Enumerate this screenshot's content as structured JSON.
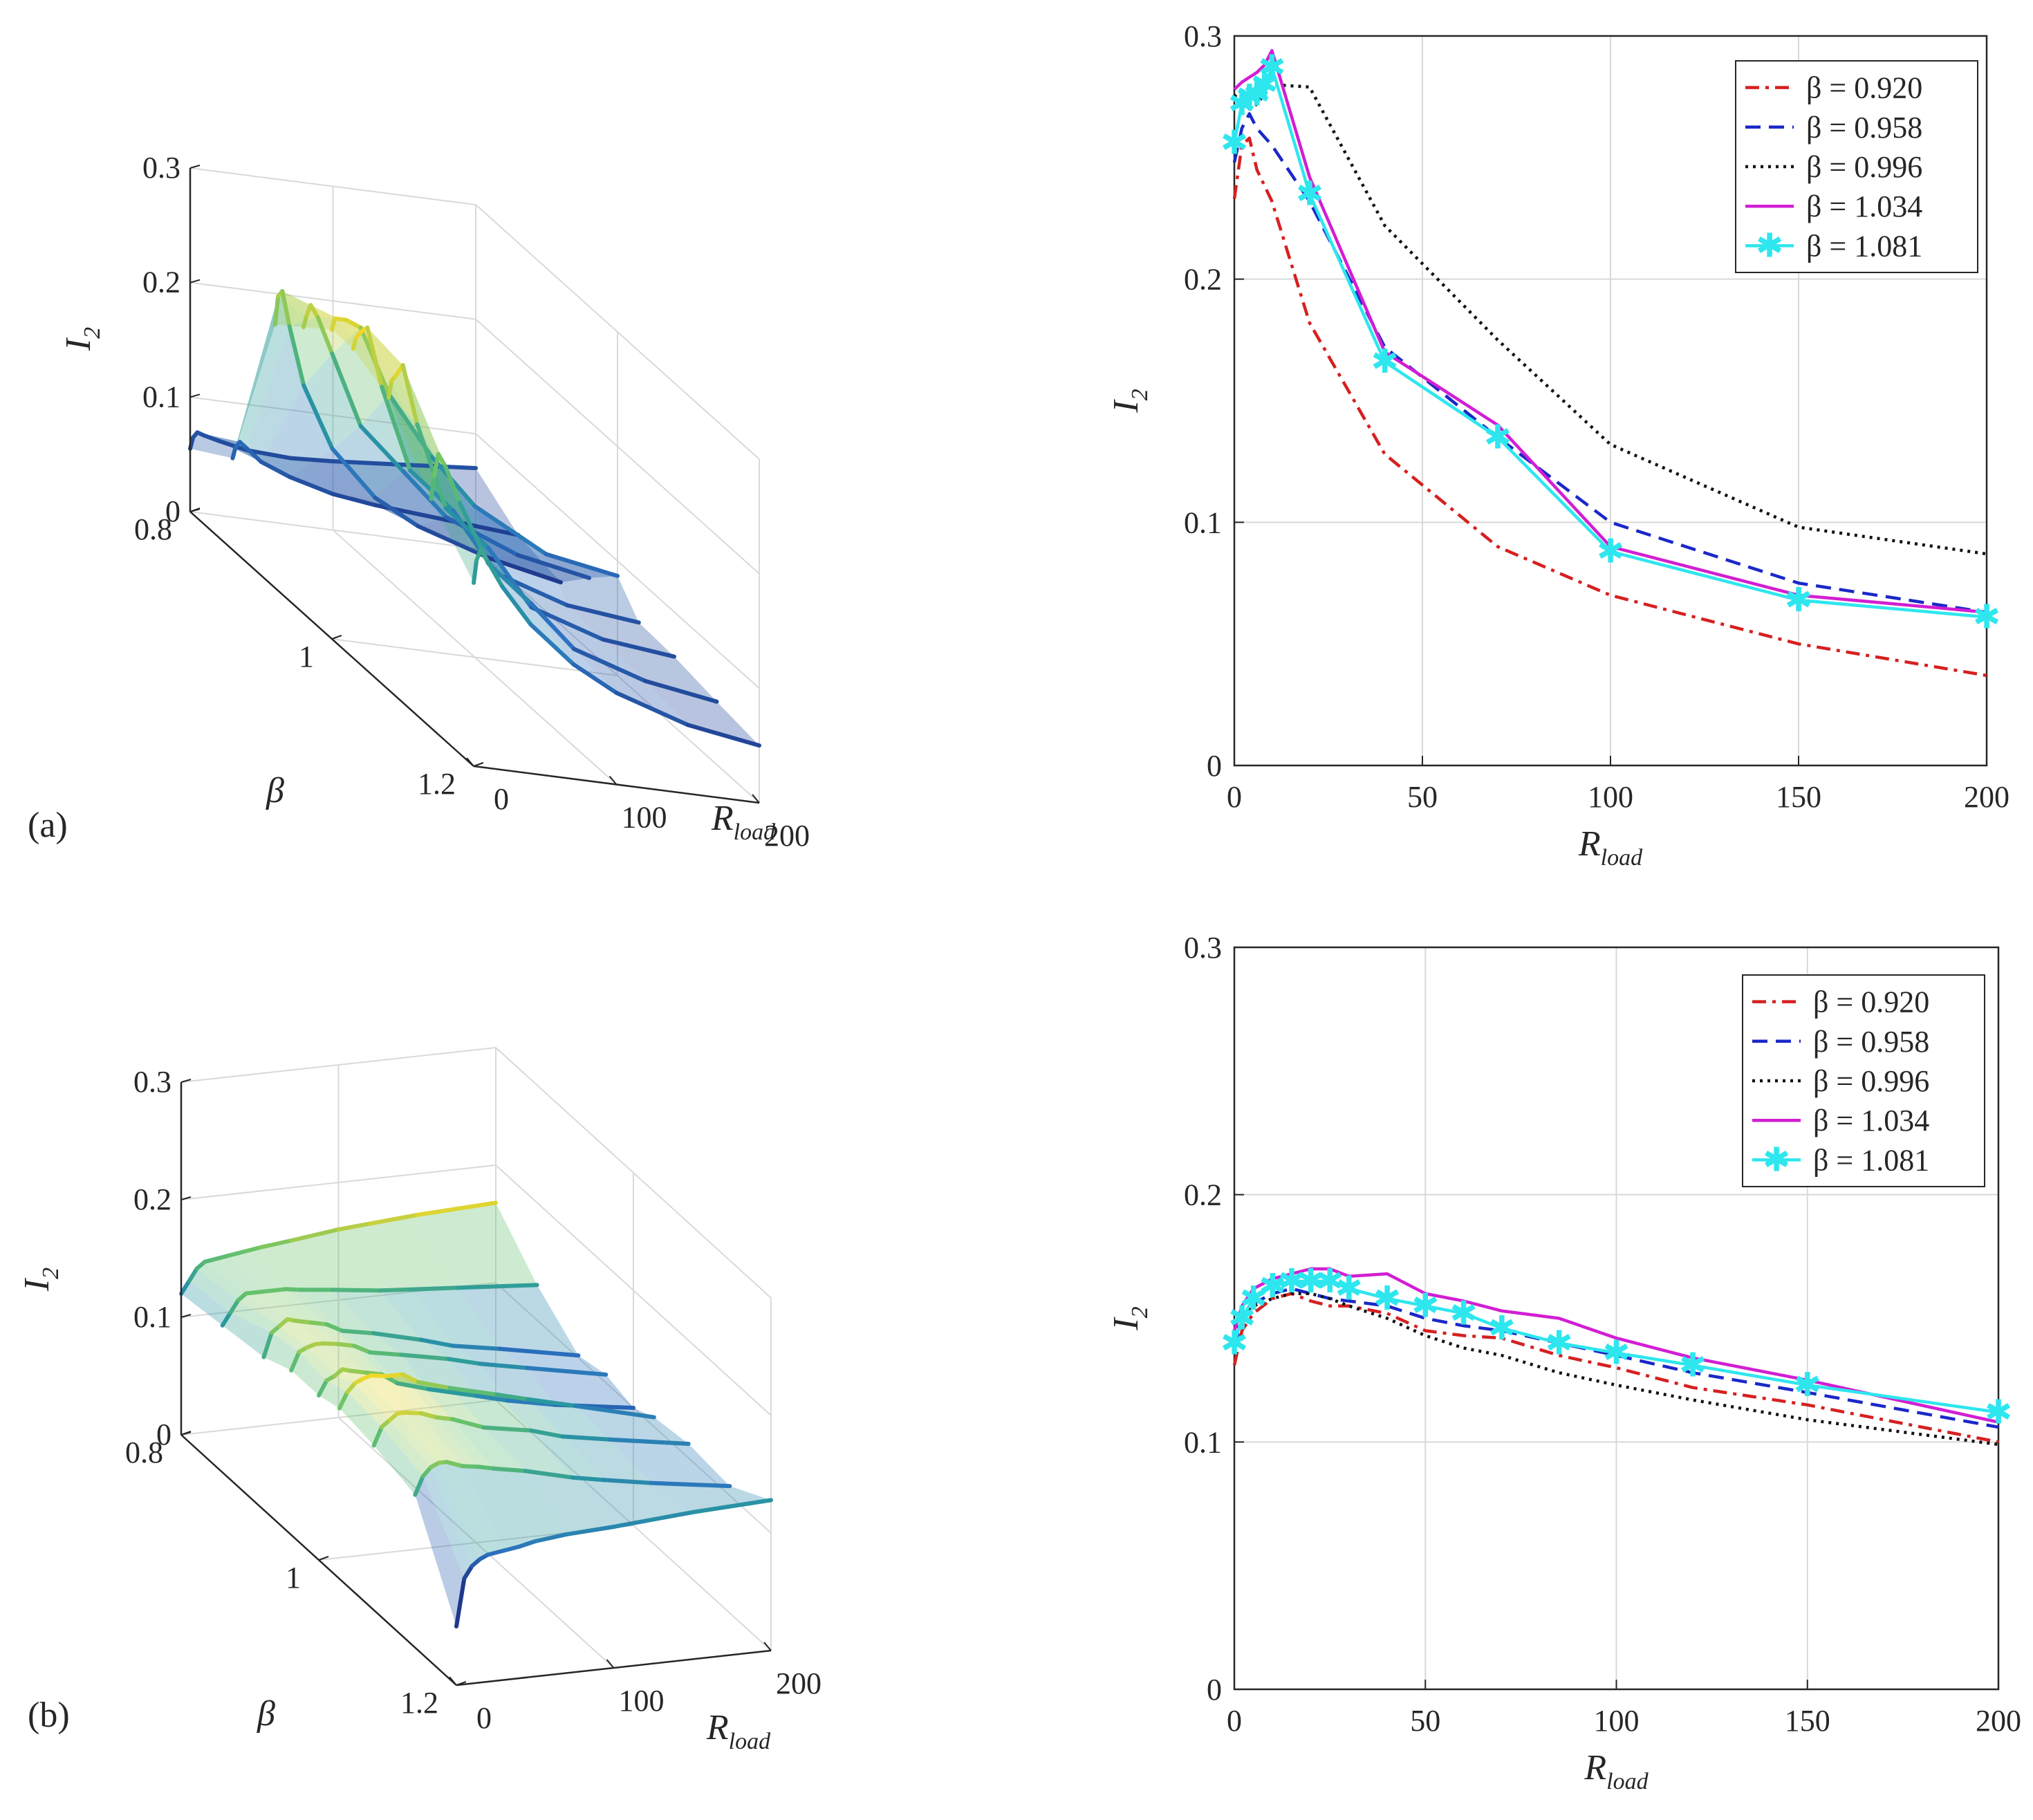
{
  "figure": {
    "panel_labels": [
      "(a)",
      "(b)"
    ]
  },
  "chart_data": [
    {
      "id": "a-3d",
      "type": "surface",
      "panel": "(a)",
      "xlabel": "R",
      "xlabel_sub": "load",
      "ylabel": "β",
      "zlabel": "I",
      "zlabel_sub": "2",
      "xlim": [
        0,
        200
      ],
      "ylim": [
        0.8,
        1.2
      ],
      "zlim": [
        0,
        0.3
      ],
      "xticks": [
        "0",
        "100",
        "200"
      ],
      "yticks": [
        "0.8",
        "1",
        "1.2"
      ],
      "zticks": [
        "0",
        "0.1",
        "0.2",
        "0.3"
      ],
      "x": [
        0,
        2,
        5,
        10,
        20,
        40,
        70,
        100,
        150,
        200
      ],
      "series": [
        {
          "beta": 0.8,
          "values": [
            0.055,
            0.065,
            0.07,
            0.068,
            0.065,
            0.06,
            0.058,
            0.06,
            0.065,
            0.07
          ]
        },
        {
          "beta": 0.86,
          "values": [
            0.08,
            0.09,
            0.095,
            0.09,
            0.08,
            0.07,
            0.06,
            0.055,
            0.05,
            0.045
          ]
        },
        {
          "beta": 0.92,
          "values": [
            0.23,
            0.255,
            0.26,
            0.23,
            0.18,
            0.128,
            0.09,
            0.07,
            0.05,
            0.037
          ]
        },
        {
          "beta": 0.96,
          "values": [
            0.25,
            0.26,
            0.27,
            0.26,
            0.23,
            0.17,
            0.135,
            0.1,
            0.075,
            0.063
          ]
        },
        {
          "beta": 1.0,
          "values": [
            0.27,
            0.28,
            0.28,
            0.28,
            0.275,
            0.22,
            0.17,
            0.132,
            0.098,
            0.087
          ]
        },
        {
          "beta": 1.03,
          "values": [
            0.27,
            0.28,
            0.285,
            0.29,
            0.24,
            0.17,
            0.14,
            0.09,
            0.07,
            0.063
          ]
        },
        {
          "beta": 1.08,
          "values": [
            0.255,
            0.27,
            0.275,
            0.285,
            0.235,
            0.165,
            0.135,
            0.088,
            0.068,
            0.061
          ]
        },
        {
          "beta": 1.14,
          "values": [
            0.2,
            0.22,
            0.24,
            0.23,
            0.2,
            0.15,
            0.12,
            0.085,
            0.065,
            0.055
          ]
        },
        {
          "beta": 1.2,
          "values": [
            0.16,
            0.18,
            0.19,
            0.18,
            0.16,
            0.13,
            0.1,
            0.08,
            0.06,
            0.05
          ]
        }
      ]
    },
    {
      "id": "a-2d",
      "type": "line",
      "panel": "(a)",
      "xlabel": "R",
      "xlabel_sub": "load",
      "ylabel": "I",
      "ylabel_sub": "2",
      "xlim": [
        0,
        200
      ],
      "ylim": [
        0,
        0.3
      ],
      "xticks": [
        0,
        50,
        100,
        150,
        200
      ],
      "yticks": [
        0,
        0.1,
        0.2,
        0.3
      ],
      "xtick_labels": [
        "0",
        "50",
        "100",
        "150",
        "200"
      ],
      "ytick_labels": [
        "0",
        "0.1",
        "0.2",
        "0.3"
      ],
      "grid": true,
      "legend": "top-right",
      "series": [
        {
          "name": "β = 0.920",
          "color": "#d62020",
          "dash": "dashdot",
          "marker": "none",
          "x": [
            0,
            2,
            4,
            6,
            10,
            20,
            40,
            70,
            100,
            150,
            200
          ],
          "y": [
            0.233,
            0.255,
            0.258,
            0.245,
            0.232,
            0.182,
            0.128,
            0.09,
            0.07,
            0.05,
            0.037
          ]
        },
        {
          "name": "β = 0.958",
          "color": "#1a28c8",
          "dash": "dashed",
          "marker": "none",
          "x": [
            0,
            2,
            4,
            6,
            10,
            20,
            40,
            70,
            100,
            150,
            200
          ],
          "y": [
            0.248,
            0.262,
            0.268,
            0.262,
            0.255,
            0.232,
            0.172,
            0.135,
            0.1,
            0.075,
            0.063
          ]
        },
        {
          "name": "β = 0.996",
          "color": "#111111",
          "dash": "dotted",
          "marker": "none",
          "x": [
            0,
            2,
            4,
            6,
            8,
            10,
            20,
            40,
            70,
            100,
            150,
            200
          ],
          "y": [
            0.275,
            0.278,
            0.27,
            0.272,
            0.276,
            0.28,
            0.279,
            0.222,
            0.175,
            0.132,
            0.098,
            0.087
          ]
        },
        {
          "name": "β = 1.034",
          "color": "#d21ed2",
          "dash": "solid",
          "marker": "none",
          "x": [
            0,
            2,
            4,
            6,
            8,
            10,
            20,
            40,
            70,
            100,
            150,
            200
          ],
          "y": [
            0.278,
            0.281,
            0.283,
            0.285,
            0.288,
            0.294,
            0.242,
            0.17,
            0.14,
            0.09,
            0.07,
            0.063
          ]
        },
        {
          "name": "β = 1.081",
          "color": "#2ee6ee",
          "dash": "solid",
          "marker": "star",
          "x": [
            0,
            2,
            4,
            6,
            8,
            10,
            20,
            40,
            70,
            100,
            150,
            200
          ],
          "y": [
            0.256,
            0.272,
            0.275,
            0.276,
            0.28,
            0.287,
            0.235,
            0.166,
            0.135,
            0.088,
            0.068,
            0.061
          ]
        }
      ]
    },
    {
      "id": "b-3d",
      "type": "surface",
      "panel": "(b)",
      "xlabel": "R",
      "xlabel_sub": "load",
      "ylabel": "β",
      "zlabel": "I",
      "zlabel_sub": "2",
      "xlim": [
        0,
        200
      ],
      "ylim": [
        0.8,
        1.2
      ],
      "zlim": [
        0,
        0.3
      ],
      "xticks": [
        "0",
        "100",
        "200"
      ],
      "yticks": [
        "0.8",
        "1",
        "1.2"
      ],
      "zticks": [
        "0",
        "0.1",
        "0.2",
        "0.3"
      ],
      "x": [
        0,
        5,
        10,
        15,
        20,
        30,
        40,
        50,
        70,
        100,
        120,
        150,
        200
      ],
      "series": [
        {
          "beta": 0.8,
          "values": [
            0.12,
            0.13,
            0.14,
            0.145,
            0.146,
            0.148,
            0.15,
            0.152,
            0.155,
            0.16,
            0.162,
            0.165,
            0.168
          ]
        },
        {
          "beta": 0.86,
          "values": [
            0.125,
            0.135,
            0.145,
            0.15,
            0.15,
            0.15,
            0.15,
            0.148,
            0.145,
            0.14,
            0.138,
            0.135,
            0.13
          ]
        },
        {
          "beta": 0.92,
          "values": [
            0.13,
            0.15,
            0.155,
            0.16,
            0.158,
            0.155,
            0.152,
            0.145,
            0.14,
            0.13,
            0.122,
            0.115,
            0.102
          ]
        },
        {
          "beta": 0.96,
          "values": [
            0.14,
            0.155,
            0.158,
            0.16,
            0.16,
            0.158,
            0.155,
            0.148,
            0.143,
            0.135,
            0.128,
            0.12,
            0.107
          ]
        },
        {
          "beta": 1.0,
          "values": [
            0.14,
            0.152,
            0.155,
            0.16,
            0.158,
            0.155,
            0.152,
            0.143,
            0.135,
            0.125,
            0.118,
            0.11,
            0.1
          ]
        },
        {
          "beta": 1.03,
          "values": [
            0.145,
            0.158,
            0.165,
            0.168,
            0.17,
            0.168,
            0.168,
            0.16,
            0.152,
            0.142,
            0.135,
            0.125,
            0.108
          ]
        },
        {
          "beta": 1.08,
          "values": [
            0.14,
            0.155,
            0.16,
            0.165,
            0.165,
            0.163,
            0.158,
            0.155,
            0.145,
            0.138,
            0.13,
            0.123,
            0.112
          ]
        },
        {
          "beta": 1.14,
          "values": [
            0.13,
            0.145,
            0.152,
            0.155,
            0.155,
            0.15,
            0.148,
            0.145,
            0.14,
            0.13,
            0.125,
            0.118,
            0.108
          ]
        },
        {
          "beta": 1.2,
          "values": [
            0.05,
            0.09,
            0.1,
            0.105,
            0.108,
            0.11,
            0.112,
            0.115,
            0.118,
            0.12,
            0.122,
            0.125,
            0.128
          ]
        }
      ]
    },
    {
      "id": "b-2d",
      "type": "line",
      "panel": "(b)",
      "xlabel": "R",
      "xlabel_sub": "load",
      "ylabel": "I",
      "ylabel_sub": "2",
      "xlim": [
        0,
        200
      ],
      "ylim": [
        0,
        0.3
      ],
      "xticks": [
        0,
        50,
        100,
        150,
        200
      ],
      "yticks": [
        0,
        0.1,
        0.2,
        0.3
      ],
      "xtick_labels": [
        "0",
        "50",
        "100",
        "150",
        "200"
      ],
      "ytick_labels": [
        "0",
        "0.1",
        "0.2",
        "0.3"
      ],
      "grid": true,
      "legend": "top-right",
      "series": [
        {
          "name": "β = 0.920",
          "color": "#d62020",
          "dash": "dashdot",
          "marker": "none",
          "x": [
            0,
            2,
            5,
            10,
            15,
            20,
            25,
            30,
            40,
            50,
            60,
            70,
            85,
            100,
            120,
            150,
            200
          ],
          "y": [
            0.131,
            0.145,
            0.152,
            0.158,
            0.16,
            0.157,
            0.155,
            0.155,
            0.152,
            0.145,
            0.143,
            0.142,
            0.135,
            0.13,
            0.122,
            0.115,
            0.1
          ]
        },
        {
          "name": "β = 0.958",
          "color": "#1a28c8",
          "dash": "dashed",
          "marker": "none",
          "x": [
            0,
            2,
            5,
            10,
            15,
            20,
            25,
            30,
            40,
            50,
            60,
            70,
            85,
            100,
            120,
            150,
            200
          ],
          "y": [
            0.138,
            0.15,
            0.156,
            0.16,
            0.162,
            0.16,
            0.158,
            0.157,
            0.155,
            0.15,
            0.147,
            0.145,
            0.14,
            0.135,
            0.128,
            0.12,
            0.106
          ]
        },
        {
          "name": "β = 0.996",
          "color": "#111111",
          "dash": "dotted",
          "marker": "none",
          "x": [
            0,
            2,
            5,
            10,
            15,
            20,
            25,
            30,
            40,
            50,
            60,
            70,
            85,
            100,
            120,
            150,
            200
          ],
          "y": [
            0.14,
            0.152,
            0.155,
            0.158,
            0.16,
            0.16,
            0.158,
            0.155,
            0.15,
            0.143,
            0.138,
            0.135,
            0.128,
            0.123,
            0.117,
            0.109,
            0.099
          ]
        },
        {
          "name": "β = 1.034",
          "color": "#d21ed2",
          "dash": "solid",
          "marker": "none",
          "x": [
            0,
            2,
            5,
            10,
            15,
            20,
            25,
            30,
            40,
            50,
            60,
            70,
            85,
            100,
            120,
            150,
            200
          ],
          "y": [
            0.145,
            0.155,
            0.162,
            0.166,
            0.168,
            0.17,
            0.17,
            0.167,
            0.168,
            0.16,
            0.157,
            0.153,
            0.15,
            0.142,
            0.134,
            0.125,
            0.108
          ]
        },
        {
          "name": "β = 1.081",
          "color": "#2ee6ee",
          "dash": "solid",
          "marker": "star",
          "x": [
            0,
            2,
            5,
            10,
            15,
            20,
            25,
            30,
            40,
            50,
            60,
            70,
            85,
            100,
            120,
            150,
            200
          ],
          "y": [
            0.14,
            0.15,
            0.158,
            0.163,
            0.165,
            0.165,
            0.165,
            0.162,
            0.158,
            0.155,
            0.152,
            0.146,
            0.14,
            0.136,
            0.131,
            0.123,
            0.112
          ]
        }
      ]
    }
  ]
}
